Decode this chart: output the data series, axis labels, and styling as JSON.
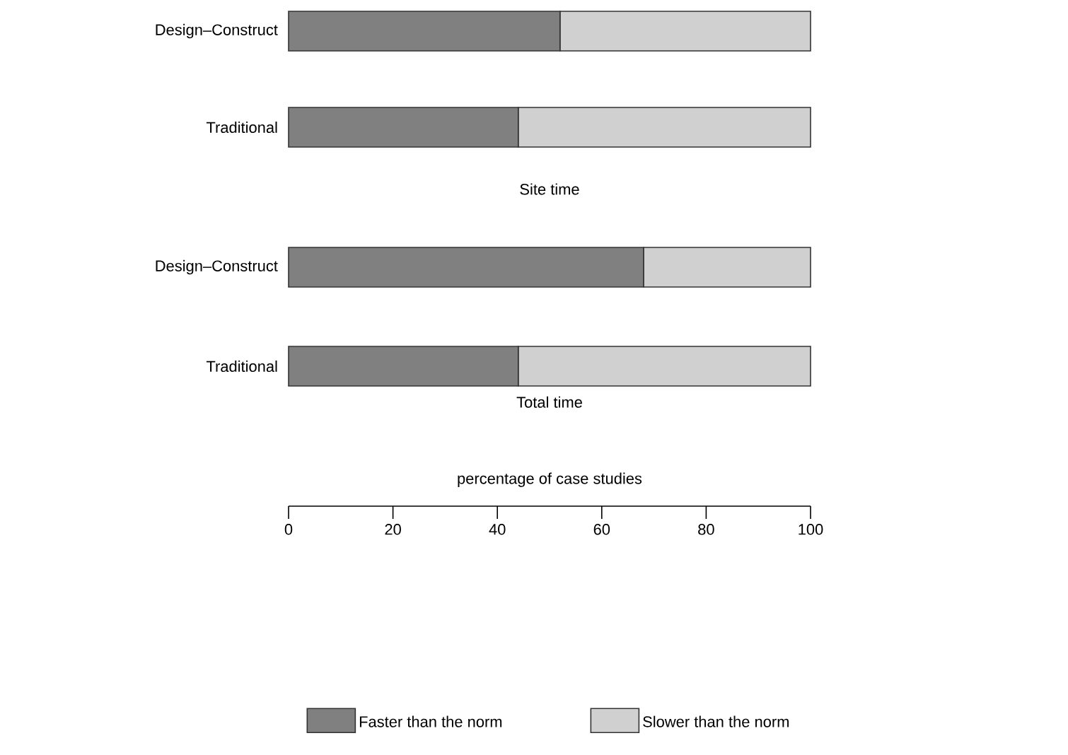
{
  "chart_data": [
    {
      "type": "bar",
      "title": "Site time",
      "categories": [
        "Design–Construct",
        "Traditional"
      ],
      "orientation": "horizontal",
      "stacked": true,
      "xlim": [
        0,
        100
      ],
      "tick_labels": "y",
      "series": [
        {
          "color": "#808080",
          "values": [
            52,
            44
          ]
        },
        {
          "color": "#d0d0d0",
          "values": [
            48,
            56
          ]
        }
      ]
    },
    {
      "type": "bar",
      "title": "Total time",
      "xlabel": "percentage of case studies",
      "categories": [
        "Design–Construct",
        "Traditional"
      ],
      "orientation": "horizontal",
      "stacked": true,
      "xlim": [
        0,
        100
      ],
      "xticks": [
        0,
        20,
        40,
        60,
        80,
        100
      ],
      "legend": "bottom",
      "series": [
        {
          "name": "Faster than the norm",
          "color": "#808080",
          "values": [
            68,
            44
          ]
        },
        {
          "name": "Slower than the norm",
          "color": "#d0d0d0",
          "values": [
            32,
            56
          ]
        }
      ]
    }
  ]
}
